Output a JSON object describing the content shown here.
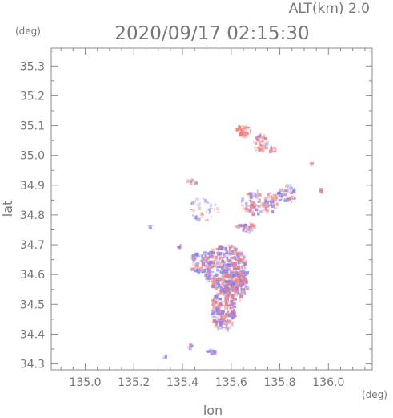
{
  "chart_data": {
    "type": "scatter",
    "title": "2020/09/17 02:15:30",
    "altitude_label": "ALT(km) 2.0",
    "xlabel": "lon",
    "ylabel": "lat",
    "x_unit": "(deg)",
    "y_unit": "(deg)",
    "xlim": [
      134.86,
      136.18
    ],
    "ylim": [
      34.28,
      35.36
    ],
    "xticks": [
      "135.0",
      "135.2",
      "135.4",
      "135.6",
      "135.8",
      "136.0"
    ],
    "yticks": [
      "34.3",
      "34.4",
      "34.5",
      "34.6",
      "34.7",
      "34.8",
      "34.9",
      "35.0",
      "35.1",
      "35.2",
      "35.3"
    ],
    "colors": {
      "positive": "#f08080",
      "negative": "#8080f0",
      "axis": "#888888"
    },
    "clusters": [
      {
        "lon": 135.58,
        "lat": 34.62,
        "rx": 0.09,
        "ry": 0.08,
        "n": 420,
        "balance": 0.5
      },
      {
        "lon": 135.57,
        "lat": 34.48,
        "rx": 0.05,
        "ry": 0.07,
        "n": 220,
        "balance": 0.5
      },
      {
        "lon": 135.48,
        "lat": 34.64,
        "rx": 0.05,
        "ry": 0.04,
        "n": 90,
        "balance": 0.4
      },
      {
        "lon": 135.62,
        "lat": 34.56,
        "rx": 0.05,
        "ry": 0.05,
        "n": 120,
        "balance": 0.55
      },
      {
        "lon": 135.72,
        "lat": 34.84,
        "rx": 0.08,
        "ry": 0.04,
        "n": 110,
        "balance": 0.45
      },
      {
        "lon": 135.83,
        "lat": 34.87,
        "rx": 0.04,
        "ry": 0.03,
        "n": 40,
        "balance": 0.3
      },
      {
        "lon": 135.65,
        "lat": 35.08,
        "rx": 0.03,
        "ry": 0.02,
        "n": 40,
        "balance": 0.9
      },
      {
        "lon": 135.72,
        "lat": 35.04,
        "rx": 0.03,
        "ry": 0.03,
        "n": 40,
        "balance": 0.85
      },
      {
        "lon": 135.77,
        "lat": 35.02,
        "rx": 0.02,
        "ry": 0.01,
        "n": 15,
        "balance": 0.8
      },
      {
        "lon": 135.44,
        "lat": 34.91,
        "rx": 0.02,
        "ry": 0.01,
        "n": 15,
        "balance": 0.7
      },
      {
        "lon": 135.49,
        "lat": 34.82,
        "rx": 0.06,
        "ry": 0.04,
        "n": 40,
        "balance": 0.5
      },
      {
        "lon": 135.66,
        "lat": 34.76,
        "rx": 0.04,
        "ry": 0.02,
        "n": 30,
        "balance": 0.6
      },
      {
        "lon": 135.52,
        "lat": 34.34,
        "rx": 0.02,
        "ry": 0.01,
        "n": 18,
        "balance": 0.2
      },
      {
        "lon": 135.43,
        "lat": 34.36,
        "rx": 0.01,
        "ry": 0.01,
        "n": 6,
        "balance": 0.3
      },
      {
        "lon": 135.33,
        "lat": 34.32,
        "rx": 0.01,
        "ry": 0.005,
        "n": 5,
        "balance": 0.1
      },
      {
        "lon": 135.97,
        "lat": 34.88,
        "rx": 0.005,
        "ry": 0.01,
        "n": 5,
        "balance": 0.6
      },
      {
        "lon": 135.93,
        "lat": 34.97,
        "rx": 0.005,
        "ry": 0.005,
        "n": 3,
        "balance": 0.8
      },
      {
        "lon": 135.27,
        "lat": 34.76,
        "rx": 0.005,
        "ry": 0.005,
        "n": 3,
        "balance": 0.3
      },
      {
        "lon": 135.39,
        "lat": 34.69,
        "rx": 0.01,
        "ry": 0.01,
        "n": 5,
        "balance": 0.5
      }
    ]
  }
}
